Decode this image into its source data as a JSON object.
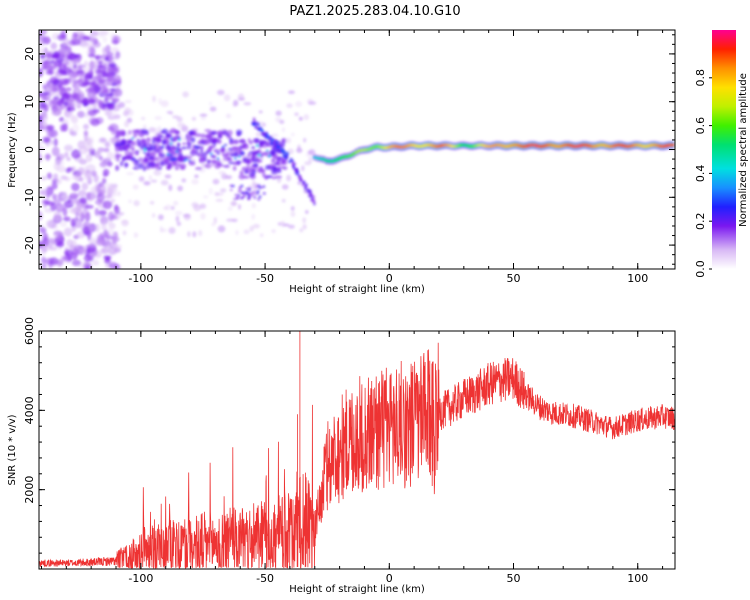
{
  "title": "PAZ1.2025.283.04.10.G10",
  "chart_data": [
    {
      "type": "heatmap",
      "xlabel": "Height of straight line (km)",
      "ylabel": "Frequency (Hz)",
      "xlim": [
        -141,
        115
      ],
      "ylim": [
        -25,
        25
      ],
      "xticks": [
        -100,
        -50,
        0,
        50,
        100
      ],
      "xtick_labels": [
        "-100",
        "-50",
        "0",
        "50",
        "100"
      ],
      "yticks": [
        -20,
        -10,
        0,
        10,
        20
      ],
      "ytick_labels": [
        "-20",
        "-10",
        "0",
        "10",
        "20"
      ],
      "colorbar": {
        "label": "Normalized spectral amplitude",
        "range": [
          0,
          1
        ],
        "ticks": [
          0.0,
          0.2,
          0.4,
          0.6,
          0.8
        ],
        "tick_labels": [
          "0.0",
          "0.2",
          "0.4",
          "0.6",
          "0.8"
        ]
      },
      "ridge": {
        "description_points": [
          {
            "x": -30,
            "y": -1.5,
            "amp": 0.35
          },
          {
            "x": -25,
            "y": -2.5,
            "amp": 0.55
          },
          {
            "x": -20,
            "y": -2.0,
            "amp": 0.6
          },
          {
            "x": -15,
            "y": -1.0,
            "amp": 0.55
          },
          {
            "x": -10,
            "y": 0.0,
            "amp": 0.65
          },
          {
            "x": -5,
            "y": 0.5,
            "amp": 0.7
          },
          {
            "x": 0,
            "y": 0.5,
            "amp": 0.8
          },
          {
            "x": 10,
            "y": 0.8,
            "amp": 0.8
          },
          {
            "x": 20,
            "y": 0.8,
            "amp": 0.85
          },
          {
            "x": 30,
            "y": 0.8,
            "amp": 0.6
          },
          {
            "x": 50,
            "y": 0.8,
            "amp": 0.9
          },
          {
            "x": 75,
            "y": 0.8,
            "amp": 0.9
          },
          {
            "x": 95,
            "y": 0.8,
            "amp": 0.85
          },
          {
            "x": 115,
            "y": 0.8,
            "amp": 0.85
          }
        ]
      }
    },
    {
      "type": "line",
      "xlabel": "Height of straight line (km)",
      "ylabel": "SNR (10 * v/v)",
      "xlim": [
        -141,
        115
      ],
      "ylim": [
        0,
        6000
      ],
      "xticks": [
        -100,
        -50,
        0,
        50,
        100
      ],
      "xtick_labels": [
        "-100",
        "-50",
        "0",
        "50",
        "100"
      ],
      "yticks": [
        2000,
        4000,
        6000
      ],
      "ytick_labels": [
        "2000",
        "4000",
        "6000"
      ],
      "color": "#ee3333",
      "series": [
        {
          "name": "SNR",
          "x": [
            -141,
            -130,
            -120,
            -110,
            -105,
            -100,
            -90,
            -80,
            -70,
            -60,
            -50,
            -45,
            -40,
            -35,
            -30,
            -28,
            -25,
            -20,
            -15,
            -10,
            -5,
            0,
            5,
            10,
            15,
            20,
            25,
            30,
            35,
            40,
            45,
            50,
            55,
            60,
            65,
            70,
            75,
            80,
            85,
            90,
            95,
            100,
            105,
            110,
            115
          ],
          "values": [
            150,
            150,
            170,
            200,
            300,
            450,
            550,
            600,
            650,
            700,
            750,
            800,
            900,
            1200,
            1000,
            1600,
            2600,
            3000,
            3300,
            3400,
            3500,
            3600,
            3650,
            3700,
            3800,
            3950,
            4100,
            4300,
            4450,
            4650,
            4750,
            4800,
            4400,
            4100,
            3950,
            3900,
            3850,
            3750,
            3650,
            3550,
            3650,
            3750,
            3800,
            3850,
            3800
          ]
        }
      ],
      "spikes": [
        {
          "x": -36,
          "value": 6100
        },
        {
          "x": -37,
          "value": 3900
        }
      ]
    }
  ]
}
